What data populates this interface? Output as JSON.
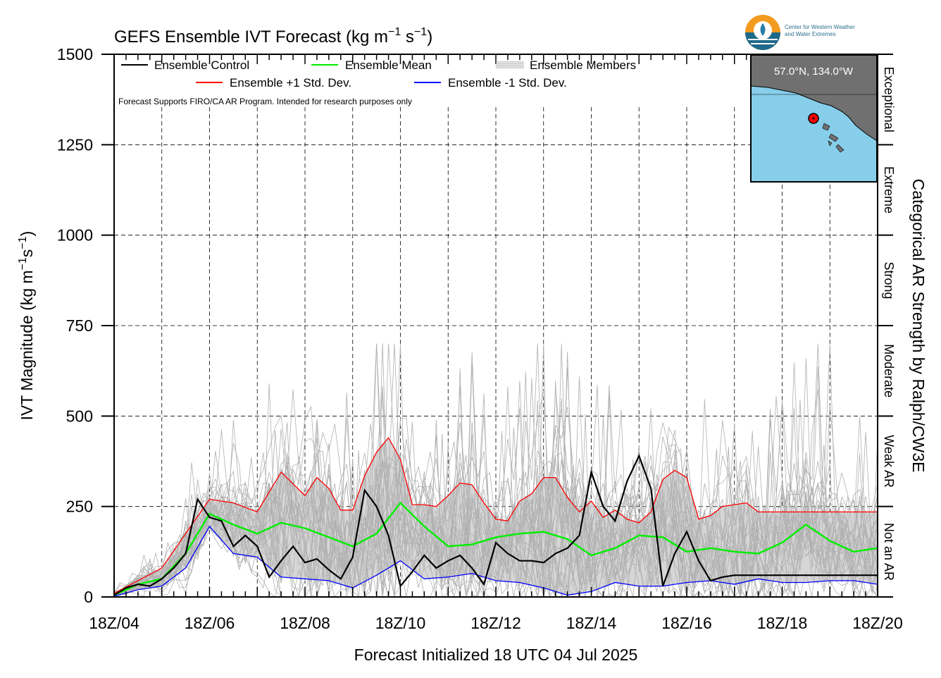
{
  "chart_data": {
    "type": "line",
    "title": "GEFS Ensemble IVT Forecast (kg m",
    "title_units_suffix": "s",
    "xlabel": "Forecast Initialized 18 UTC 04 Jul 2025",
    "ylabel": "IVT Magnitude (kg m",
    "ylabel_suffix": "s",
    "right_axis_label": "Categorical AR Strength by Ralph/CW3E",
    "x_ticks": [
      "18Z/04",
      "18Z/06",
      "18Z/08",
      "18Z/10",
      "18Z/12",
      "18Z/14",
      "18Z/16",
      "18Z/18",
      "18Z/20"
    ],
    "x_range_days": [
      0,
      16
    ],
    "ylim": [
      0,
      1500
    ],
    "y_ticks": [
      0,
      250,
      500,
      750,
      1000,
      1250,
      1500
    ],
    "grid": true,
    "legend_placement": "top-left",
    "note": "Forecast Supports FIRO/CA AR Program. Intended for research purposes only",
    "categories": [
      {
        "label": "Not an AR",
        "from": 0,
        "to": 250
      },
      {
        "label": "Weak AR",
        "from": 250,
        "to": 500
      },
      {
        "label": "Moderate",
        "from": 500,
        "to": 750
      },
      {
        "label": "Strong",
        "from": 750,
        "to": 1000
      },
      {
        "label": "Extreme",
        "from": 1000,
        "to": 1250
      },
      {
        "label": "Exceptional",
        "from": 1250,
        "to": 1500
      }
    ],
    "series": [
      {
        "name": "Ensemble Control",
        "color": "#000000",
        "x": [
          0,
          0.25,
          0.5,
          0.75,
          1,
          1.25,
          1.5,
          1.75,
          2,
          2.25,
          2.5,
          2.75,
          3,
          3.25,
          3.5,
          3.75,
          4,
          4.25,
          4.5,
          4.75,
          5,
          5.25,
          5.5,
          5.75,
          6,
          6.25,
          6.5,
          6.75,
          7,
          7.25,
          7.5,
          7.75,
          8,
          8.25,
          8.5,
          8.75,
          9,
          9.25,
          9.5,
          9.75,
          10,
          10.25,
          10.5,
          10.75,
          11,
          11.25,
          11.5,
          11.75,
          12,
          12.25,
          12.5,
          12.75,
          13,
          13.25,
          13.5,
          13.75,
          14,
          14.25,
          14.5,
          14.75,
          15,
          15.25,
          15.5,
          15.75,
          16
        ],
        "y": [
          5,
          25,
          35,
          30,
          50,
          80,
          120,
          270,
          220,
          210,
          140,
          170,
          140,
          55,
          100,
          140,
          95,
          105,
          75,
          50,
          110,
          295,
          250,
          170,
          30,
          70,
          115,
          80,
          100,
          115,
          80,
          35,
          150,
          120,
          100,
          100,
          95,
          120,
          135,
          170,
          345,
          250,
          210,
          320,
          390,
          300,
          30,
          120,
          180,
          100,
          45,
          55,
          60,
          60,
          60,
          60,
          60,
          60,
          60,
          60,
          60,
          60,
          60,
          60,
          60
        ]
      },
      {
        "name": "Ensemble Mean",
        "color": "#00ee00",
        "x": [
          0,
          0.5,
          1,
          1.5,
          2,
          2.5,
          3,
          3.5,
          4,
          4.5,
          5,
          5.5,
          6,
          6.5,
          7,
          7.5,
          8,
          8.5,
          9,
          9.5,
          10,
          10.5,
          11,
          11.5,
          12,
          12.5,
          13,
          13.5,
          14,
          14.5,
          15,
          15.5,
          16
        ],
        "y": [
          5,
          35,
          50,
          120,
          230,
          200,
          175,
          205,
          190,
          165,
          140,
          175,
          260,
          195,
          140,
          145,
          165,
          175,
          180,
          160,
          115,
          135,
          170,
          165,
          125,
          135,
          125,
          120,
          150,
          200,
          155,
          125,
          135
        ]
      },
      {
        "name": "Ensemble +1 Std. Dev.",
        "color": "#ff0000",
        "x": [
          0,
          0.5,
          1,
          1.5,
          2,
          2.5,
          3,
          3.5,
          4,
          4.25,
          4.5,
          4.75,
          5,
          5.25,
          5.5,
          5.75,
          6,
          6.25,
          6.5,
          6.75,
          7,
          7.25,
          7.5,
          7.75,
          8,
          8.25,
          8.5,
          8.75,
          9,
          9.25,
          9.5,
          9.75,
          10,
          10.25,
          10.5,
          10.75,
          11,
          11.25,
          11.5,
          11.75,
          12,
          12.25,
          12.5,
          12.75,
          13,
          13.25,
          13.5,
          13.75,
          14,
          14.25,
          14.5,
          14.75,
          15,
          15.25,
          15.5,
          15.75,
          16
        ],
        "y": [
          10,
          45,
          80,
          175,
          270,
          260,
          235,
          345,
          280,
          330,
          300,
          240,
          240,
          335,
          400,
          440,
          380,
          255,
          255,
          250,
          280,
          315,
          310,
          260,
          215,
          210,
          265,
          285,
          330,
          330,
          275,
          235,
          265,
          220,
          240,
          215,
          205,
          235,
          325,
          350,
          330,
          215,
          225,
          250,
          255,
          260,
          235,
          235,
          235,
          235,
          235,
          235,
          235,
          235,
          235,
          235,
          235
        ]
      },
      {
        "name": "Ensemble -1 Std. Dev.",
        "color": "#0000ff",
        "x": [
          0,
          0.5,
          1,
          1.5,
          2,
          2.5,
          3,
          3.5,
          4,
          4.5,
          5,
          5.5,
          6,
          6.5,
          7,
          7.5,
          8,
          8.5,
          9,
          9.5,
          10,
          10.5,
          11,
          11.5,
          12,
          12.5,
          13,
          13.5,
          14,
          14.5,
          15,
          15.5,
          16
        ],
        "y": [
          2,
          20,
          30,
          80,
          195,
          120,
          110,
          55,
          50,
          45,
          25,
          60,
          100,
          50,
          55,
          65,
          45,
          40,
          25,
          5,
          15,
          40,
          30,
          30,
          40,
          45,
          35,
          50,
          40,
          40,
          45,
          45,
          35
        ]
      }
    ],
    "ensemble_members": {
      "name": "Ensemble Members",
      "color": "#b0b0b0",
      "count": 30,
      "range": [
        0,
        700
      ]
    },
    "inset_map": {
      "label": "57.0°N, 134.0°W"
    },
    "logo": {
      "line1": "Center for Western Weather",
      "line2": "and Water Extremes"
    }
  }
}
